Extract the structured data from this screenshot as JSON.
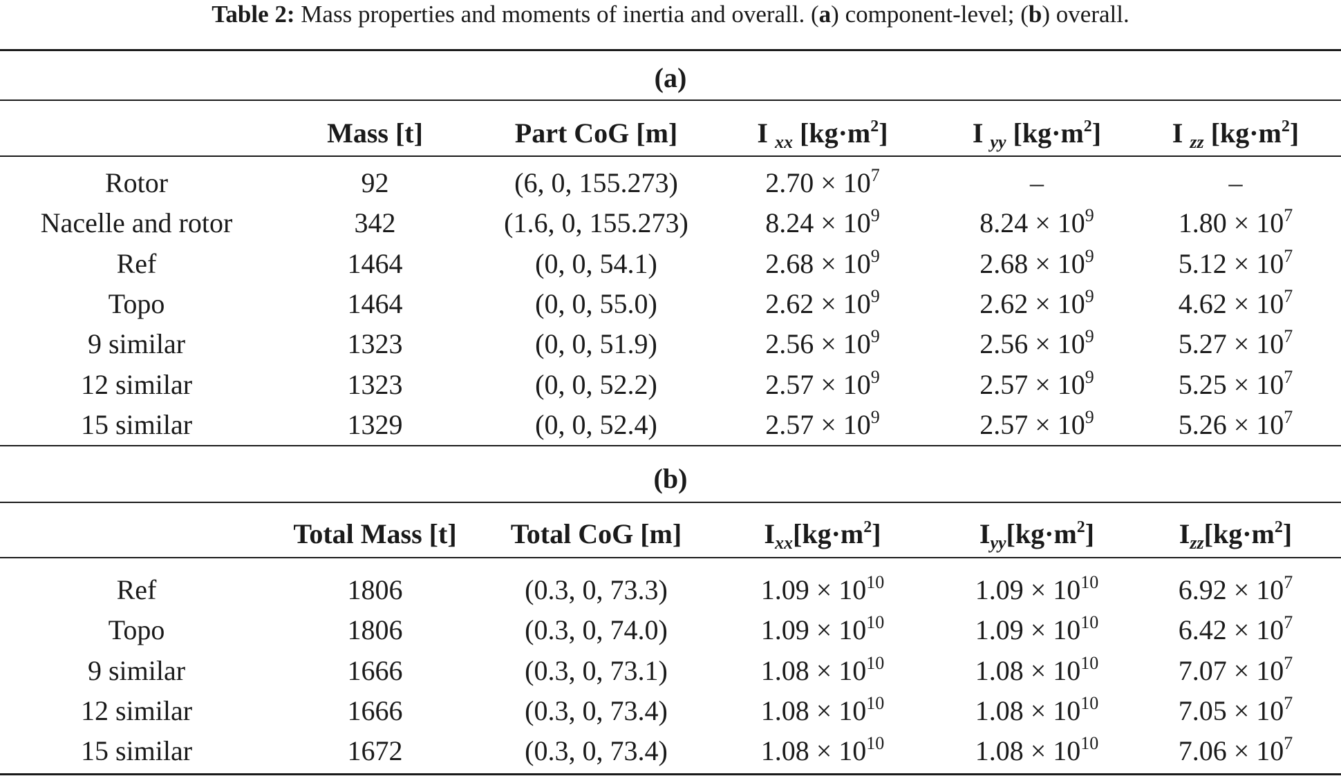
{
  "caption": {
    "label": "Table 2:",
    "text_1": " Mass properties and moments of inertia and overall. (",
    "a": "a",
    "text_2": ") component-level; (",
    "b": "b",
    "text_3": ") overall."
  },
  "section_a": {
    "label": "(a)",
    "headers": {
      "mass": "Mass [t]",
      "cog": "Part CoG [m]",
      "ixx": {
        "base": "I ",
        "sub": "xx",
        "unit": " [kg·m",
        "sq": "2",
        "close": "]"
      },
      "iyy": {
        "base": "I ",
        "sub": "yy",
        "unit": " [kg·m",
        "sq": "2",
        "close": "]"
      },
      "izz": {
        "base": "I ",
        "sub": "zz",
        "unit": " [kg·m",
        "sq": "2",
        "close": "]"
      }
    },
    "rows": [
      {
        "name": "Rotor",
        "mass": "92",
        "cog": "(6, 0, 155.273)",
        "ixx": {
          "m": "2.70 × 10",
          "e": "7"
        },
        "iyy": {
          "dash": "–"
        },
        "izz": {
          "dash": "–"
        }
      },
      {
        "name": "Nacelle and rotor",
        "mass": "342",
        "cog": "(1.6, 0, 155.273)",
        "ixx": {
          "m": "8.24 × 10",
          "e": "9"
        },
        "iyy": {
          "m": "8.24 × 10",
          "e": "9"
        },
        "izz": {
          "m": "1.80 × 10",
          "e": "7"
        }
      },
      {
        "name": "Ref",
        "mass": "1464",
        "cog": "(0, 0, 54.1)",
        "ixx": {
          "m": "2.68 × 10",
          "e": "9"
        },
        "iyy": {
          "m": "2.68 × 10",
          "e": "9"
        },
        "izz": {
          "m": "5.12 × 10",
          "e": "7"
        }
      },
      {
        "name": "Topo",
        "mass": "1464",
        "cog": "(0, 0, 55.0)",
        "ixx": {
          "m": "2.62 × 10",
          "e": "9"
        },
        "iyy": {
          "m": "2.62 × 10",
          "e": "9"
        },
        "izz": {
          "m": "4.62 × 10",
          "e": "7"
        }
      },
      {
        "name": "9 similar",
        "mass": "1323",
        "cog": "(0, 0, 51.9)",
        "ixx": {
          "m": "2.56 × 10",
          "e": "9"
        },
        "iyy": {
          "m": "2.56 × 10",
          "e": "9"
        },
        "izz": {
          "m": "5.27 × 10",
          "e": "7"
        }
      },
      {
        "name": "12 similar",
        "mass": "1323",
        "cog": "(0, 0, 52.2)",
        "ixx": {
          "m": "2.57 × 10",
          "e": "9"
        },
        "iyy": {
          "m": "2.57 × 10",
          "e": "9"
        },
        "izz": {
          "m": "5.25 × 10",
          "e": "7"
        }
      },
      {
        "name": "15 similar",
        "mass": "1329",
        "cog": "(0, 0, 52.4)",
        "ixx": {
          "m": "2.57 × 10",
          "e": "9"
        },
        "iyy": {
          "m": "2.57 × 10",
          "e": "9"
        },
        "izz": {
          "m": "5.26 × 10",
          "e": "7"
        }
      }
    ]
  },
  "section_b": {
    "label": "(b)",
    "headers": {
      "mass": "Total Mass [t]",
      "cog": "Total CoG [m]",
      "ixx": {
        "base": "I",
        "sub": "xx",
        "unit": "[kg·m",
        "sq": "2",
        "close": "]"
      },
      "iyy": {
        "base": "I",
        "sub": "yy",
        "unit": "[kg·m",
        "sq": "2",
        "close": "]"
      },
      "izz": {
        "base": "I",
        "sub": "zz",
        "unit": "[kg·m",
        "sq": "2",
        "close": "]"
      }
    },
    "rows": [
      {
        "name": "Ref",
        "mass": "1806",
        "cog": "(0.3, 0, 73.3)",
        "ixx": {
          "m": "1.09 × 10",
          "e": "10"
        },
        "iyy": {
          "m": "1.09 × 10",
          "e": "10"
        },
        "izz": {
          "m": "6.92 × 10",
          "e": "7"
        }
      },
      {
        "name": "Topo",
        "mass": "1806",
        "cog": "(0.3, 0, 74.0)",
        "ixx": {
          "m": "1.09 × 10",
          "e": "10"
        },
        "iyy": {
          "m": "1.09 × 10",
          "e": "10"
        },
        "izz": {
          "m": "6.42 × 10",
          "e": "7"
        }
      },
      {
        "name": "9 similar",
        "mass": "1666",
        "cog": "(0.3, 0, 73.1)",
        "ixx": {
          "m": "1.08 × 10",
          "e": "10"
        },
        "iyy": {
          "m": "1.08 × 10",
          "e": "10"
        },
        "izz": {
          "m": "7.07 × 10",
          "e": "7"
        }
      },
      {
        "name": "12 similar",
        "mass": "1666",
        "cog": "(0.3, 0, 73.4)",
        "ixx": {
          "m": "1.08 × 10",
          "e": "10"
        },
        "iyy": {
          "m": "1.08 × 10",
          "e": "10"
        },
        "izz": {
          "m": "7.05 × 10",
          "e": "7"
        }
      },
      {
        "name": "15 similar",
        "mass": "1672",
        "cog": "(0.3, 0, 73.4)",
        "ixx": {
          "m": "1.08 × 10",
          "e": "10"
        },
        "iyy": {
          "m": "1.08 × 10",
          "e": "10"
        },
        "izz": {
          "m": "7.06 × 10",
          "e": "7"
        }
      }
    ]
  }
}
